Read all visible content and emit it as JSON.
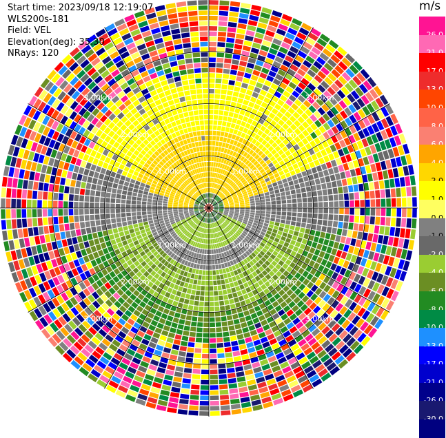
{
  "info": {
    "start_time": "Start time: 2023/09/18 12:19:07",
    "instrument": "WLS200s-181",
    "field": "Field: VEL",
    "elevation": "Elevation(deg): 35.30",
    "nrays": "NRays: 120"
  },
  "colorbar": {
    "unit": "m/s",
    "colors": [
      "#ff1493",
      "#ff69b4",
      "#ff0000",
      "#ee2c2c",
      "#ff4500",
      "#ff6347",
      "#fa8072",
      "#ffa500",
      "#ffd700",
      "#ffff00",
      "#ffff60",
      "#808080",
      "#696969",
      "#9acd32",
      "#6b8e23",
      "#228b22",
      "#008b45",
      "#1e90ff",
      "#0000ff",
      "#0000cd",
      "#00008b",
      "#191970",
      "#000080"
    ],
    "labels": [
      "26.0",
      "21.0",
      "17.0",
      "13.0",
      "10.0",
      "8.0",
      "6.0",
      "4.0",
      "2.0",
      "1.0",
      "0.0",
      "-1.0",
      "-2.0",
      "-4.0",
      "-6.0",
      "-8.0",
      "-10.0",
      "-13.0",
      "-17.0",
      "-21.0",
      "-26.0",
      "-30.0"
    ]
  },
  "chart_data": {
    "type": "heatmap",
    "projection": "polar",
    "field": "VEL",
    "units": "m/s",
    "n_rays": 120,
    "n_gates": 40,
    "max_range_km": 4.0,
    "elevation_deg": 35.3,
    "range_ring_labels": [
      "1.00km",
      "2.00km",
      "3.00km"
    ],
    "range_rings_km": [
      1.0,
      2.0,
      3.0
    ],
    "azimuth_spokes_deg": [
      0,
      30,
      60,
      90,
      120,
      150,
      180,
      210,
      240,
      270,
      300,
      330
    ],
    "clean_data_radius_km": 2.6,
    "velocity_pattern": [
      {
        "azimuth_deg_range": [
          270,
          90
        ],
        "radius_km": [
          0.3,
          2.6
        ],
        "approx_velocity_ms": [
          1.0,
          4.0
        ],
        "note": "northern half, yellow"
      },
      {
        "azimuth_deg_range": [
          90,
          270
        ],
        "radius_km": [
          0.3,
          2.6
        ],
        "approx_velocity_ms": [
          -4.0,
          -2.0
        ],
        "note": "southern half, green"
      },
      {
        "ring_km": 1.0,
        "approx_velocity_ms": 0.0,
        "note": "grey zero-velocity band"
      }
    ]
  }
}
